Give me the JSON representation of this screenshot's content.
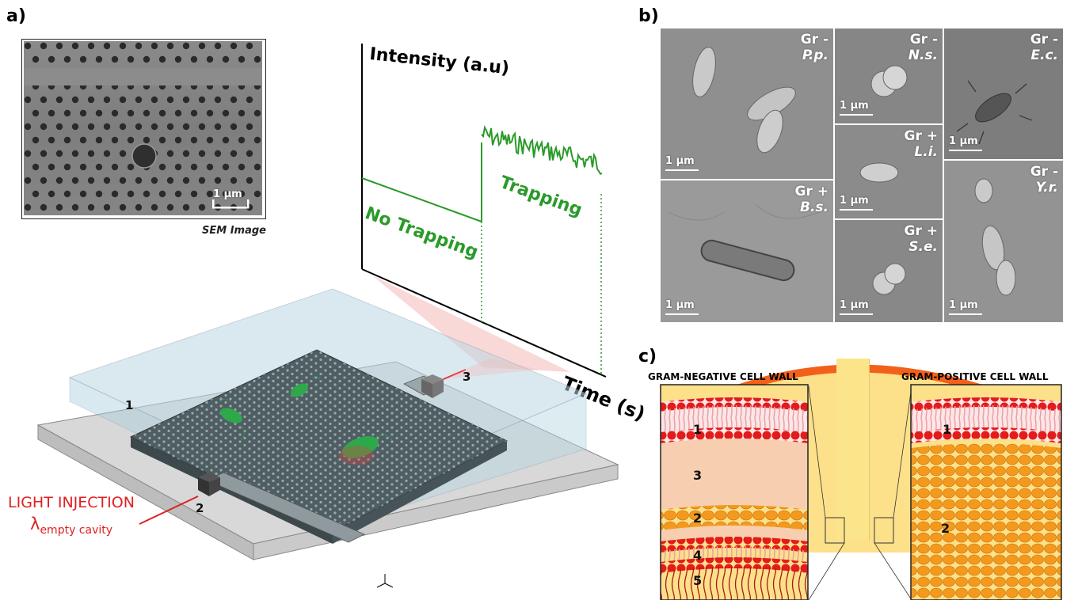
{
  "panel_a": {
    "label": "a)",
    "sem_caption": "SEM Image",
    "sem_scale": "1 μm",
    "graph": {
      "ylabel": "Intensity (a.u)",
      "xlabel": "Time (s)",
      "region1": "No Trapping",
      "region2": "Trapping"
    },
    "chip": {
      "marker1": "1",
      "marker2": "2",
      "marker3": "3",
      "light_injection": "LIGHT INJECTION",
      "lambda_symbol": "λ",
      "lambda_sub": "empty cavity"
    }
  },
  "panel_b": {
    "label": "b)",
    "tiles": [
      {
        "gram": "Gr -",
        "species": "P.p.",
        "scale": "1 μm"
      },
      {
        "gram": "Gr -",
        "species": "N.s.",
        "scale": "1 μm"
      },
      {
        "gram": "Gr -",
        "species": "E.c.",
        "scale": "1 μm"
      },
      {
        "gram": "Gr +",
        "species": "L.i.",
        "scale": "1 μm"
      },
      {
        "gram": "Gr +",
        "species": "B.s.",
        "scale": "1 μm"
      },
      {
        "gram": "Gr +",
        "species": "S.e.",
        "scale": "1 μm"
      },
      {
        "gram": "Gr -",
        "species": "Y.r.",
        "scale": "1 μm"
      }
    ]
  },
  "panel_c": {
    "label": "c)",
    "left_title": "GRAM-NEGATIVE CELL WALL",
    "right_title": "GRAM-POSITIVE CELL WALL",
    "left_numbers": [
      "1",
      "3",
      "2",
      "4",
      "5"
    ],
    "right_numbers": [
      "1",
      "2"
    ]
  },
  "colors": {
    "trace_green": "#2a9a2a",
    "injection_red": "#e02020",
    "membrane_red": "#e31b1b",
    "peptidoglycan_orange": "#f39a1e",
    "wall_yellow": "#fde08a"
  }
}
